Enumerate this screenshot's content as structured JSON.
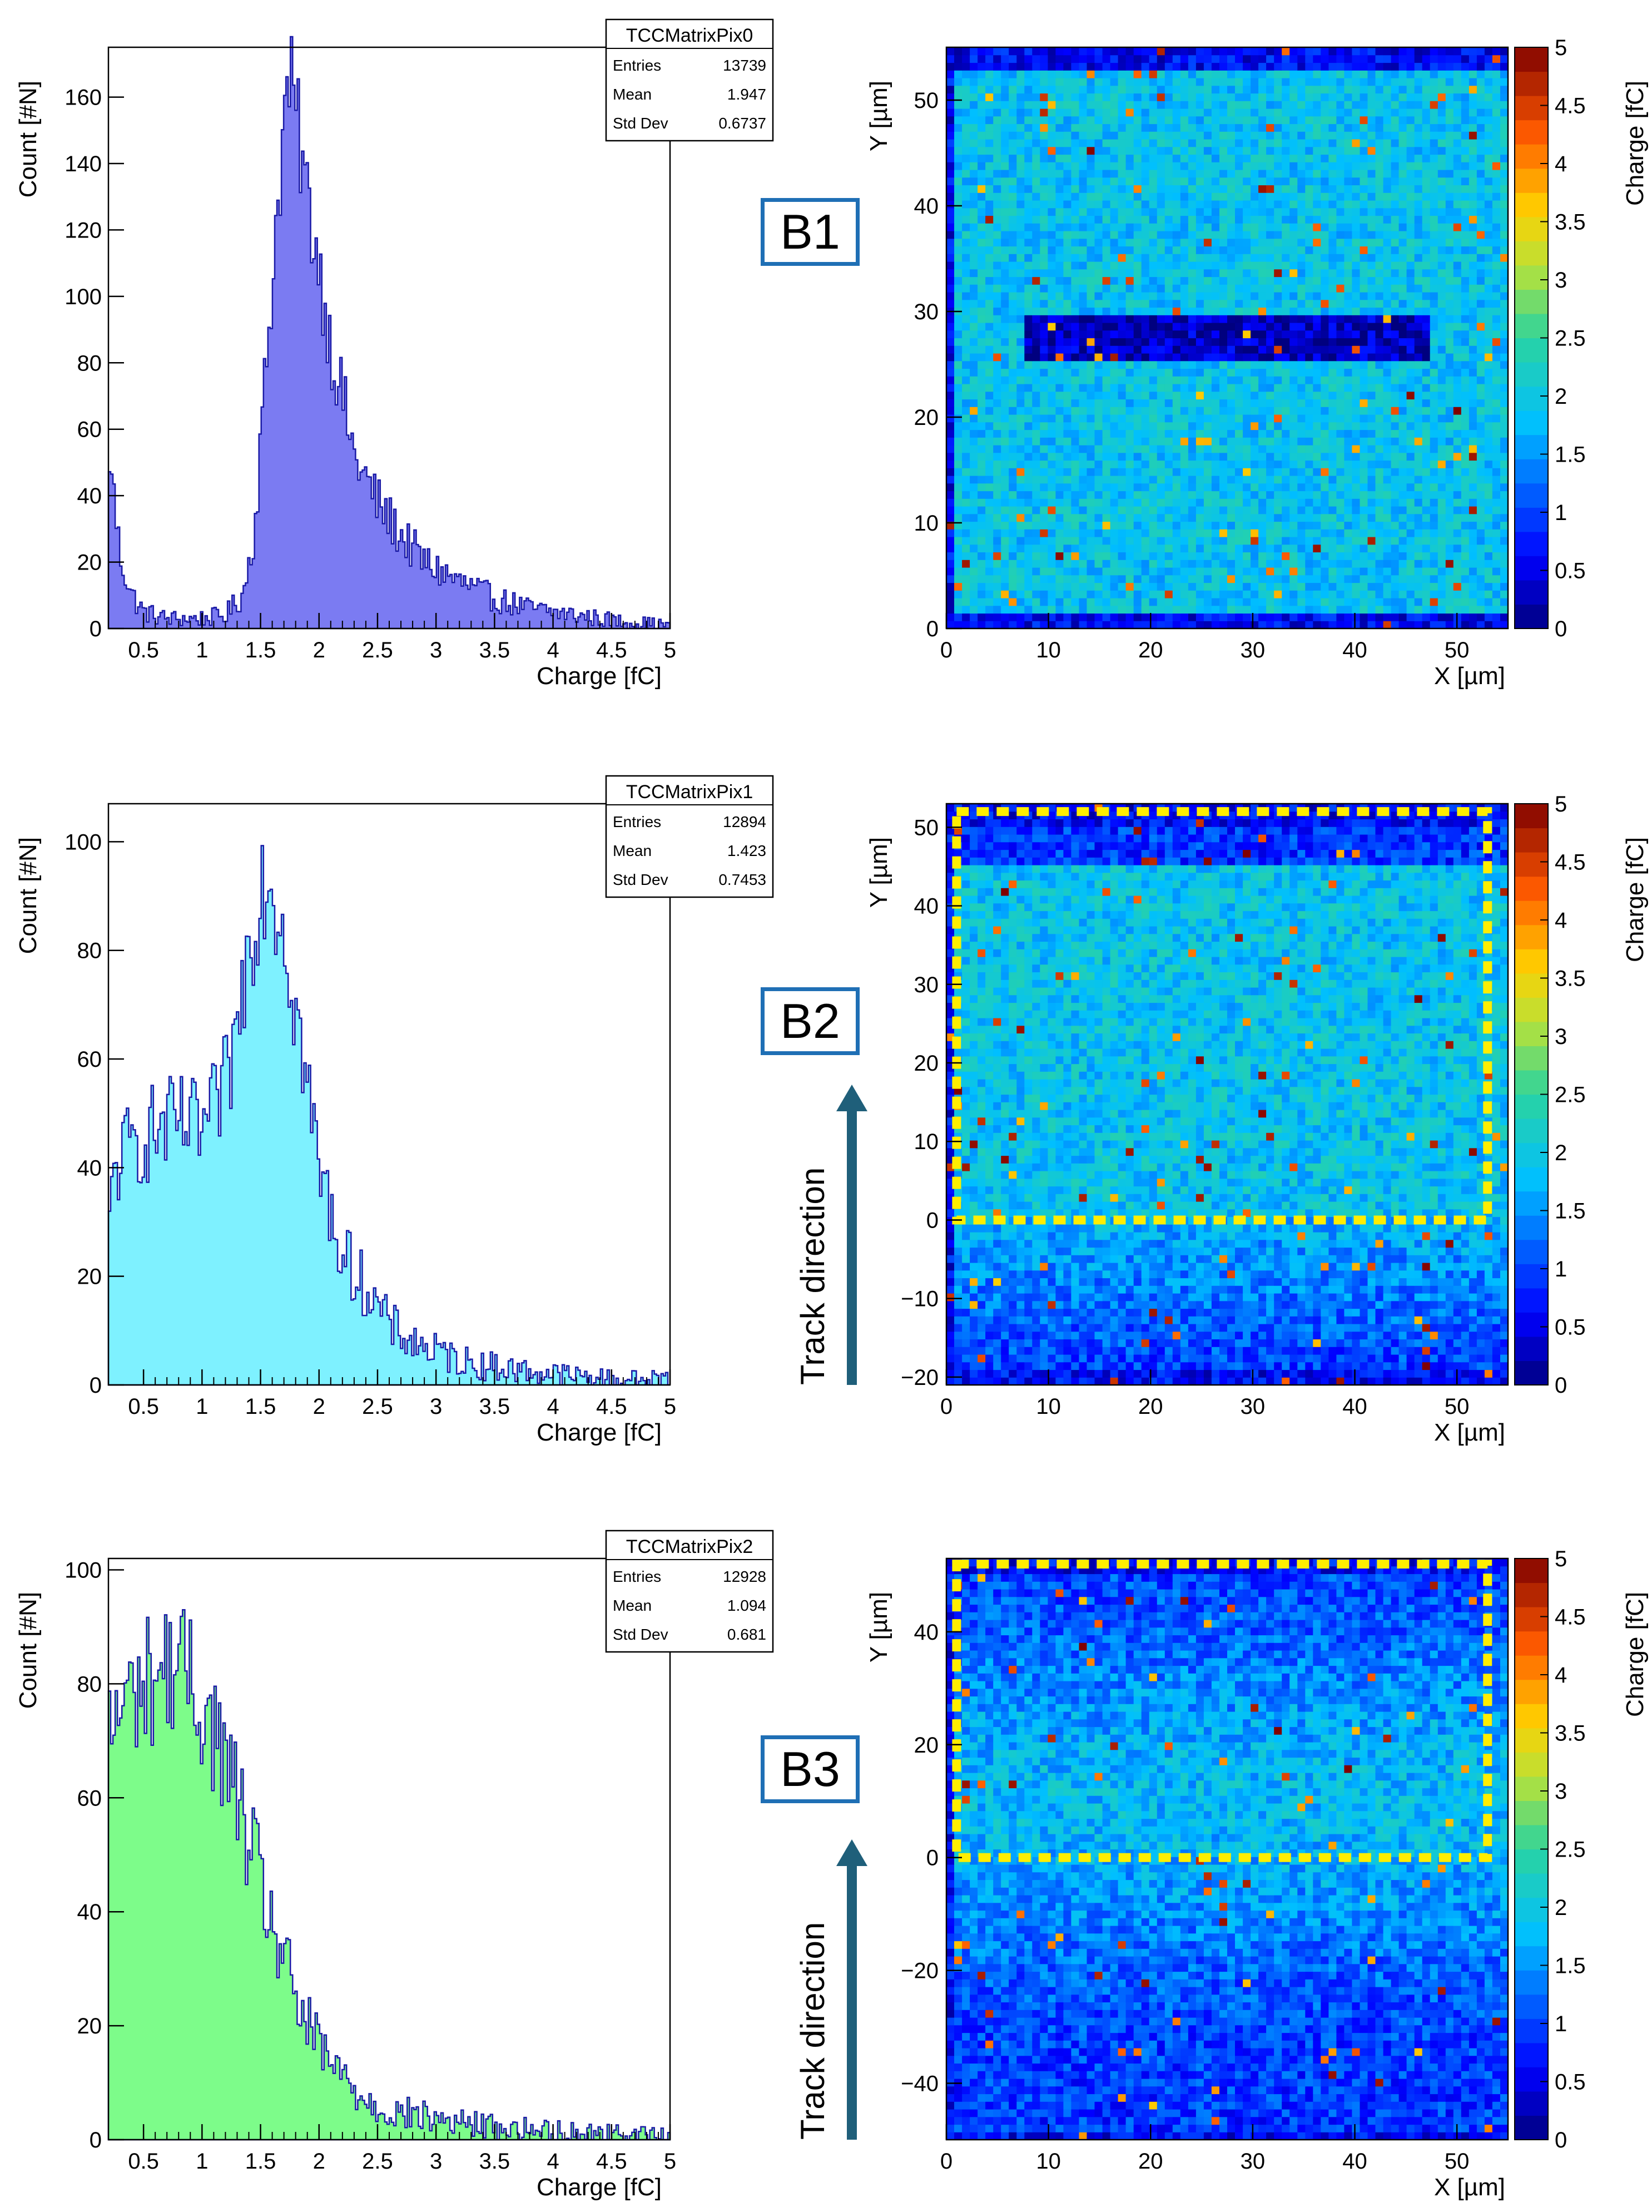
{
  "chart_data": [
    {
      "type": "histogram",
      "name": "TCCMatrixPix0",
      "xlabel": "Charge [fC]",
      "ylabel": "Count [#N]",
      "xlim": [
        0.2,
        5
      ],
      "ylim": [
        0,
        175
      ],
      "xticks": [
        "0.5",
        "1",
        "1.5",
        "2",
        "2.5",
        "3",
        "3.5",
        "4",
        "4.5",
        "5"
      ],
      "yticks": [
        "0",
        "20",
        "40",
        "60",
        "80",
        "100",
        "120",
        "140",
        "160"
      ],
      "ytick_values": [
        0,
        20,
        40,
        60,
        80,
        100,
        120,
        140,
        160
      ],
      "fill_color": "#7b7bf2",
      "line_color": "#1a1aa6",
      "stats": {
        "title": "TCCMatrixPix0",
        "rows": [
          {
            "label": "Entries",
            "value": "13739"
          },
          {
            "label": "Mean",
            "value": "1.947"
          },
          {
            "label": "Std Dev",
            "value": "0.6737"
          }
        ]
      },
      "curve": [
        [
          0.2,
          30
        ],
        [
          0.22,
          58
        ],
        [
          0.25,
          38
        ],
        [
          0.3,
          22
        ],
        [
          0.4,
          10
        ],
        [
          0.5,
          5
        ],
        [
          0.7,
          3
        ],
        [
          1.0,
          3
        ],
        [
          1.2,
          4
        ],
        [
          1.35,
          10
        ],
        [
          1.45,
          30
        ],
        [
          1.55,
          80
        ],
        [
          1.65,
          130
        ],
        [
          1.72,
          160
        ],
        [
          1.75,
          165
        ],
        [
          1.8,
          155
        ],
        [
          1.9,
          130
        ],
        [
          2.0,
          110
        ],
        [
          2.1,
          85
        ],
        [
          2.2,
          70
        ],
        [
          2.3,
          52
        ],
        [
          2.5,
          38
        ],
        [
          2.7,
          28
        ],
        [
          2.9,
          20
        ],
        [
          3.2,
          14
        ],
        [
          3.5,
          9
        ],
        [
          3.8,
          6
        ],
        [
          4.2,
          4
        ],
        [
          4.6,
          2
        ],
        [
          5.0,
          1
        ]
      ]
    },
    {
      "type": "heatmap",
      "xlabel": "X [µm]",
      "ylabel": "Y [µm]",
      "zlabel": "Charge [fC]",
      "xlim": [
        0,
        55
      ],
      "ylim": [
        0,
        55
      ],
      "xticks": [
        "0",
        "10",
        "20",
        "30",
        "40",
        "50"
      ],
      "xtick_values": [
        0,
        10,
        20,
        30,
        40,
        50
      ],
      "yticks": [
        "0",
        "10",
        "20",
        "30",
        "40",
        "50"
      ],
      "ytick_values": [
        0,
        10,
        20,
        30,
        40,
        50
      ],
      "zticks": [
        "0",
        "0.5",
        "1",
        "1.5",
        "2",
        "2.5",
        "3",
        "3.5",
        "4",
        "4.5",
        "5"
      ],
      "zlim": [
        0,
        5
      ],
      "base_level": 1.9,
      "gradient": "none",
      "dark_band": {
        "x": [
          8,
          47
        ],
        "y": [
          25.5,
          29.5
        ],
        "value": 0.3
      },
      "panel_label": "B1"
    },
    {
      "type": "histogram",
      "name": "TCCMatrixPix1",
      "xlabel": "Charge [fC]",
      "ylabel": "Count [#N]",
      "xlim": [
        0.2,
        5
      ],
      "ylim": [
        0,
        107
      ],
      "xticks": [
        "0.5",
        "1",
        "1.5",
        "2",
        "2.5",
        "3",
        "3.5",
        "4",
        "4.5",
        "5"
      ],
      "yticks": [
        "0",
        "20",
        "40",
        "60",
        "80",
        "100"
      ],
      "ytick_values": [
        0,
        20,
        40,
        60,
        80,
        100
      ],
      "fill_color": "#7ef1ff",
      "line_color": "#1a1aa6",
      "stats": {
        "title": "TCCMatrixPix1",
        "rows": [
          {
            "label": "Entries",
            "value": "12894"
          },
          {
            "label": "Mean",
            "value": "1.423"
          },
          {
            "label": "Std Dev",
            "value": "0.7453"
          }
        ]
      },
      "curve": [
        [
          0.2,
          25
        ],
        [
          0.25,
          40
        ],
        [
          0.4,
          44
        ],
        [
          0.6,
          47
        ],
        [
          0.8,
          48
        ],
        [
          1.0,
          47
        ],
        [
          1.1,
          50
        ],
        [
          1.2,
          55
        ],
        [
          1.3,
          65
        ],
        [
          1.4,
          82
        ],
        [
          1.5,
          92
        ],
        [
          1.55,
          95
        ],
        [
          1.6,
          92
        ],
        [
          1.7,
          85
        ],
        [
          1.8,
          70
        ],
        [
          1.9,
          55
        ],
        [
          2.0,
          40
        ],
        [
          2.1,
          32
        ],
        [
          2.2,
          24
        ],
        [
          2.4,
          18
        ],
        [
          2.6,
          11
        ],
        [
          2.8,
          8
        ],
        [
          3.0,
          6
        ],
        [
          3.3,
          4
        ],
        [
          3.6,
          3
        ],
        [
          4.0,
          2
        ],
        [
          4.5,
          1
        ],
        [
          5.0,
          1
        ]
      ]
    },
    {
      "type": "heatmap",
      "xlabel": "X [µm]",
      "ylabel": "Y [µm]",
      "zlabel": "Charge [fC]",
      "xlim": [
        0,
        55
      ],
      "ylim": [
        -21,
        53
      ],
      "xticks": [
        "0",
        "10",
        "20",
        "30",
        "40",
        "50"
      ],
      "xtick_values": [
        0,
        10,
        20,
        30,
        40,
        50
      ],
      "yticks": [
        "−20",
        "−10",
        "0",
        "10",
        "20",
        "30",
        "40",
        "50"
      ],
      "ytick_values": [
        -20,
        -10,
        0,
        10,
        20,
        30,
        40,
        50
      ],
      "zticks": [
        "0",
        "0.5",
        "1",
        "1.5",
        "2",
        "2.5",
        "3",
        "3.5",
        "4",
        "4.5",
        "5"
      ],
      "zlim": [
        0,
        5
      ],
      "base_level": 1.5,
      "gradient": "band",
      "selection_box": {
        "x": [
          1,
          53
        ],
        "y": [
          0,
          52
        ]
      },
      "panel_label": "B2",
      "track_label": "Track direction"
    },
    {
      "type": "histogram",
      "name": "TCCMatrixPix2",
      "xlabel": "Charge [fC]",
      "ylabel": "Count [#N]",
      "xlim": [
        0.2,
        5
      ],
      "ylim": [
        0,
        102
      ],
      "xticks": [
        "0.5",
        "1",
        "1.5",
        "2",
        "2.5",
        "3",
        "3.5",
        "4",
        "4.5",
        "5"
      ],
      "yticks": [
        "0",
        "20",
        "40",
        "60",
        "80",
        "100"
      ],
      "ytick_values": [
        0,
        20,
        40,
        60,
        80,
        100
      ],
      "fill_color": "#7dfc8a",
      "line_color": "#1a1aa6",
      "stats": {
        "title": "TCCMatrixPix2",
        "rows": [
          {
            "label": "Entries",
            "value": "12928"
          },
          {
            "label": "Mean",
            "value": "1.094"
          },
          {
            "label": "Std Dev",
            "value": "0.681"
          }
        ]
      },
      "curve": [
        [
          0.2,
          70
        ],
        [
          0.3,
          76
        ],
        [
          0.5,
          80
        ],
        [
          0.7,
          83
        ],
        [
          0.8,
          84
        ],
        [
          0.9,
          80
        ],
        [
          1.0,
          76
        ],
        [
          1.1,
          72
        ],
        [
          1.2,
          66
        ],
        [
          1.3,
          60
        ],
        [
          1.4,
          52
        ],
        [
          1.5,
          45
        ],
        [
          1.6,
          38
        ],
        [
          1.7,
          31
        ],
        [
          1.8,
          25
        ],
        [
          1.9,
          20
        ],
        [
          2.0,
          16
        ],
        [
          2.2,
          11
        ],
        [
          2.4,
          7
        ],
        [
          2.6,
          5
        ],
        [
          2.9,
          4
        ],
        [
          3.2,
          3
        ],
        [
          3.6,
          2
        ],
        [
          4.0,
          1.5
        ],
        [
          4.5,
          1
        ],
        [
          5.0,
          0.5
        ]
      ]
    },
    {
      "type": "heatmap",
      "xlabel": "X [µm]",
      "ylabel": "Y [µm]",
      "zlabel": "Charge [fC]",
      "xlim": [
        0,
        55
      ],
      "ylim": [
        -50,
        53
      ],
      "xticks": [
        "0",
        "10",
        "20",
        "30",
        "40",
        "50"
      ],
      "xtick_values": [
        0,
        10,
        20,
        30,
        40,
        50
      ],
      "yticks": [
        "−40",
        "−20",
        "0",
        "20",
        "40"
      ],
      "ytick_values": [
        -40,
        -20,
        0,
        20,
        40
      ],
      "zticks": [
        "0",
        "0.5",
        "1",
        "1.5",
        "2",
        "2.5",
        "3",
        "3.5",
        "4",
        "4.5",
        "5"
      ],
      "zlim": [
        0,
        5
      ],
      "base_level": 1.2,
      "gradient": "middle",
      "selection_box": {
        "x": [
          1,
          53
        ],
        "y": [
          0,
          52
        ]
      },
      "panel_label": "B3",
      "track_label": "Track direction"
    }
  ]
}
